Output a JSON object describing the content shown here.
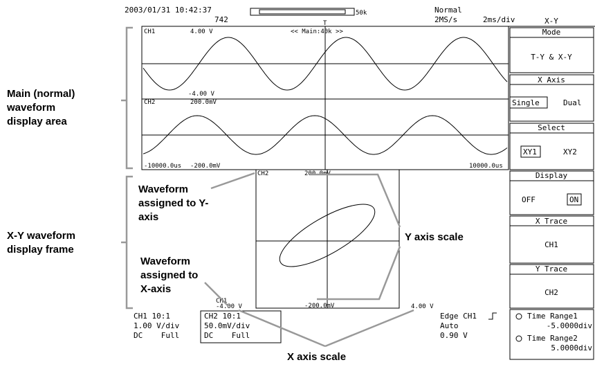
{
  "header": {
    "datetime": "2003/01/31 10:42:37",
    "count": "742",
    "record_length": "50k",
    "trigger_mode": "Normal",
    "sample_rate": "2MS/s",
    "timebase": "2ms/div",
    "trigger_marker": "T"
  },
  "waveform": {
    "ch1": {
      "label": "CH1",
      "top": "4.00 V",
      "bottom": "-4.00 V",
      "zoom": "<< Main:40k >>"
    },
    "ch2": {
      "label": "CH2",
      "top": "200.0mV",
      "bottom": "-200.0mV"
    },
    "time_left": "-10000.0us",
    "time_right": "10000.0us"
  },
  "xy": {
    "y_label": "CH2",
    "y_top": "200.0mV",
    "y_bottom": "-200.0mV",
    "x_label": "CH1",
    "x_left": "-4.00 V",
    "x_right": "4.00 V"
  },
  "status": {
    "ch1": [
      "CH1 10:1",
      "1.00 V/div",
      "DC    Full"
    ],
    "ch2": [
      "CH2 10:1",
      "50.0mV/div",
      "DC    Full"
    ],
    "trigger": [
      "Edge CH1",
      "Auto",
      "0.90 V"
    ]
  },
  "menu": {
    "title": "X-Y",
    "mode": {
      "label": "Mode",
      "value": "T-Y & X-Y"
    },
    "x_axis": {
      "label": "X Axis",
      "options": [
        "Single",
        "Dual"
      ]
    },
    "select": {
      "label": "Select",
      "options": [
        "XY1",
        "XY2"
      ]
    },
    "display": {
      "label": "Display",
      "options": [
        "OFF",
        "ON"
      ]
    },
    "x_trace": {
      "label": "X Trace",
      "value": "CH1"
    },
    "y_trace": {
      "label": "Y Trace",
      "value": "CH2"
    },
    "time_range1": {
      "label": "Time Range1",
      "value": "-5.0000div"
    },
    "time_range2": {
      "label": "Time Range2",
      "value": "5.0000div"
    }
  },
  "callouts": {
    "main_area": [
      "Main (normal)",
      "waveform",
      "display area"
    ],
    "xy_frame": [
      "X-Y waveform",
      "display frame"
    ],
    "y_assigned": [
      "Waveform",
      "assigned to Y-",
      "axis"
    ],
    "x_assigned": [
      "Waveform",
      "assigned to",
      "X-axis"
    ],
    "y_scale": "Y axis scale",
    "x_scale": "X axis scale"
  }
}
